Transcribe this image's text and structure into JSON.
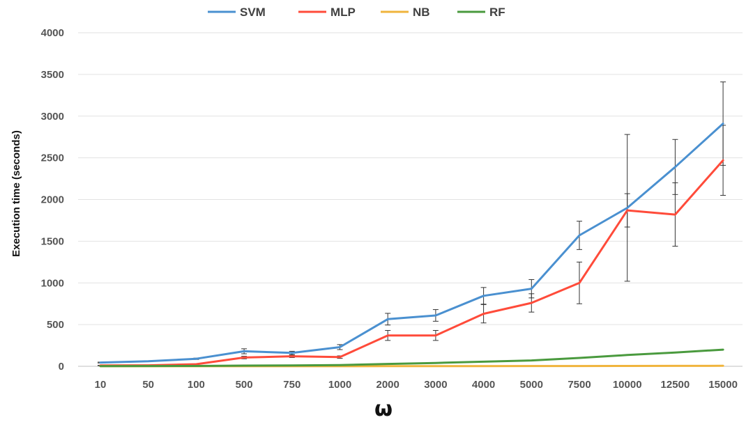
{
  "chart_data": {
    "type": "line",
    "xlabel": "ω",
    "ylabel": "Execution time (seconds)",
    "categories": [
      "10",
      "50",
      "100",
      "500",
      "750",
      "1000",
      "2000",
      "3000",
      "4000",
      "5000",
      "7500",
      "10000",
      "12500",
      "15000"
    ],
    "ylim": [
      0,
      4000
    ],
    "yticks": [
      "0",
      "500",
      "1000",
      "1500",
      "2000",
      "2500",
      "3000",
      "3500",
      "4000"
    ],
    "grid": true,
    "legend": "top",
    "series": [
      {
        "name": "SVM",
        "color": "#4a90d0",
        "values": [
          45,
          60,
          90,
          180,
          160,
          230,
          565,
          610,
          845,
          930,
          1570,
          1900,
          2390,
          2910
        ],
        "error": [
          5,
          5,
          8,
          30,
          20,
          30,
          70,
          70,
          100,
          110,
          170,
          880,
          330,
          500
        ]
      },
      {
        "name": "MLP",
        "color": "#ff4b3a",
        "values": [
          10,
          12,
          25,
          105,
          120,
          110,
          370,
          370,
          630,
          760,
          1000,
          1870,
          1820,
          2470
        ],
        "error": [
          2,
          2,
          5,
          15,
          15,
          15,
          60,
          60,
          110,
          110,
          250,
          200,
          380,
          420
        ]
      },
      {
        "name": "NB",
        "color": "#f0b43c",
        "values": [
          1,
          1,
          1,
          1,
          1,
          1,
          2,
          2,
          2,
          3,
          3,
          4,
          5,
          6
        ],
        "error": []
      },
      {
        "name": "RF",
        "color": "#4a9a3e",
        "values": [
          2,
          3,
          4,
          8,
          10,
          14,
          28,
          40,
          55,
          70,
          100,
          135,
          165,
          200
        ],
        "error": []
      }
    ]
  }
}
